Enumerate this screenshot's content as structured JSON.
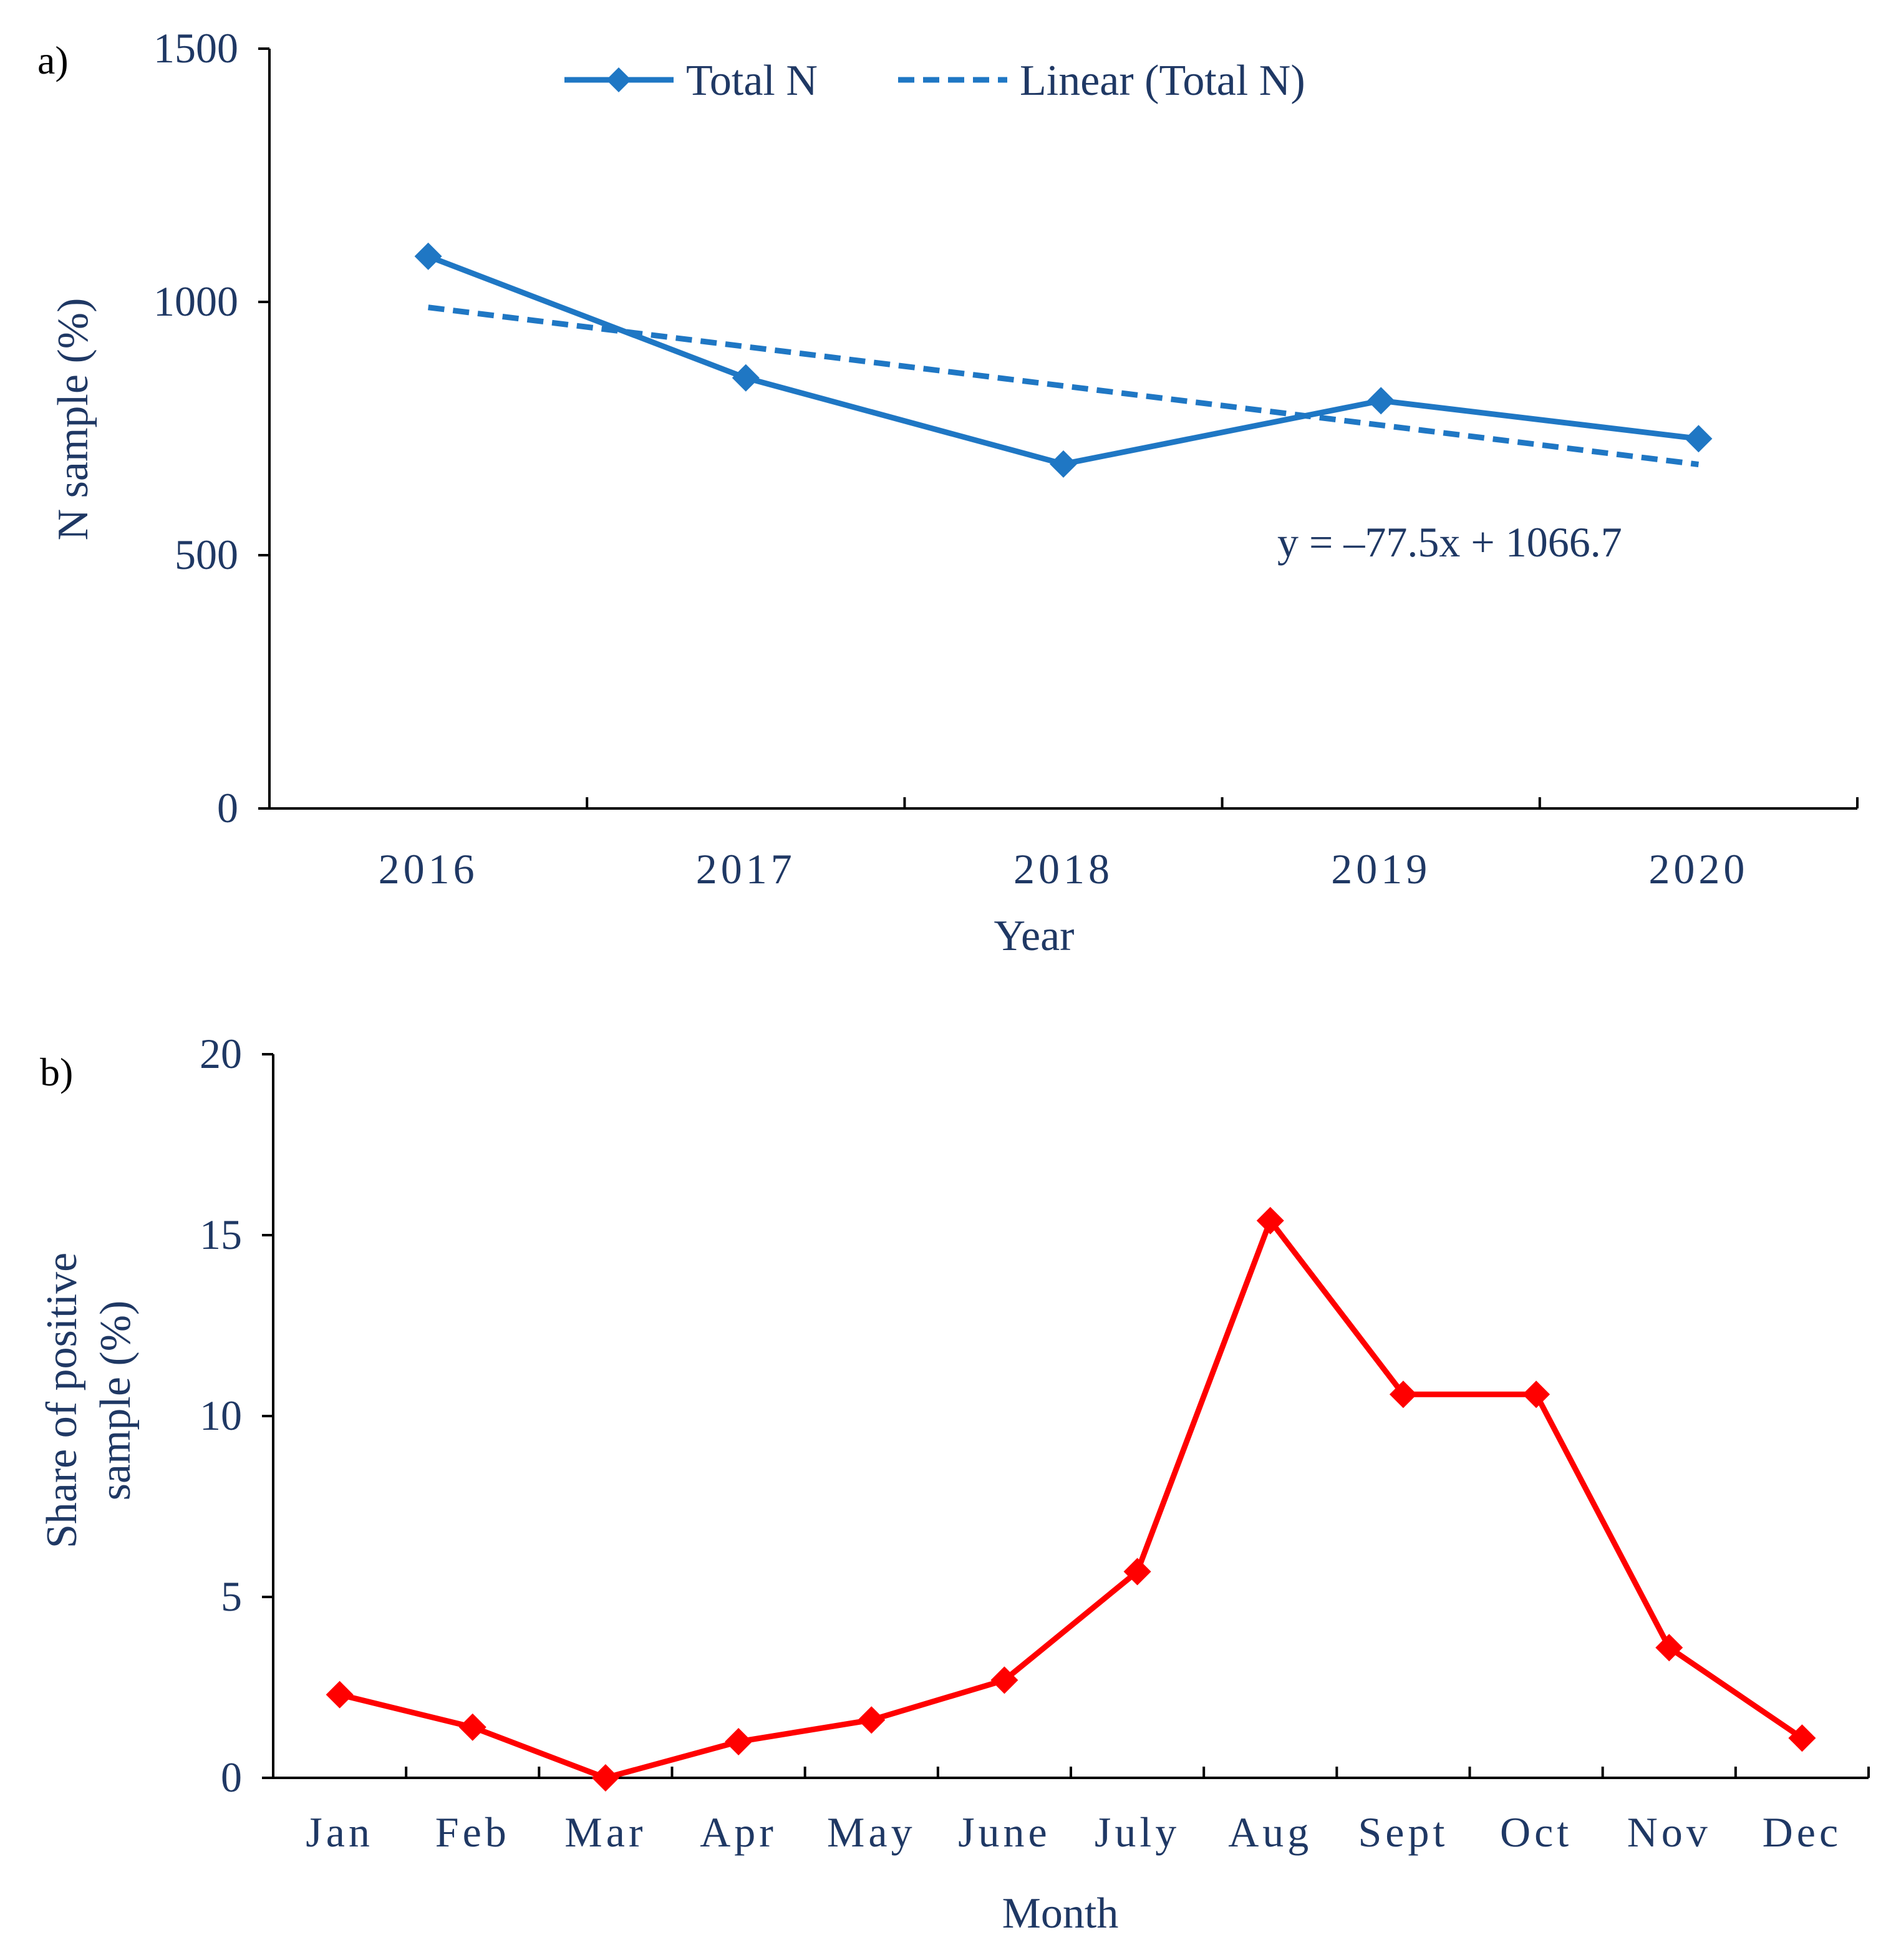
{
  "colors": {
    "total_n": "#1f77c4",
    "positive": "#ff0000",
    "axis": "#000000",
    "text": "#1f3864"
  },
  "chart_data": [
    {
      "panel_label": "a)",
      "type": "line",
      "title": "",
      "xlabel": "Year",
      "ylabel": "N sample (%)",
      "categories": [
        "2016",
        "2017",
        "2018",
        "2019",
        "2020"
      ],
      "ylim": [
        0,
        1500
      ],
      "yticks": [
        "0",
        "500",
        "1000",
        "1500"
      ],
      "legend_position": "top",
      "series": [
        {
          "name": "Total N",
          "style": "solid-diamond",
          "values": [
            1090,
            850,
            680,
            805,
            730
          ]
        },
        {
          "name": "Linear (Total N)",
          "style": "dashed",
          "values": [
            989.2,
            911.7,
            834.2,
            756.7,
            679.2
          ]
        }
      ],
      "annotation": "y = –77.5x + 1066.7"
    },
    {
      "panel_label": "b)",
      "type": "line",
      "title": "",
      "xlabel": "Month",
      "ylabel_line1": "Share of positive",
      "ylabel_line2": "sample (%)",
      "categories": [
        "Jan",
        "Feb",
        "Mar",
        "Apr",
        "May",
        "June",
        "July",
        "Aug",
        "Sept",
        "Oct",
        "Nov",
        "Dec"
      ],
      "ylim": [
        0,
        20
      ],
      "yticks": [
        "0",
        "5",
        "10",
        "15",
        "20"
      ],
      "series": [
        {
          "name": "Share of positive sample",
          "style": "solid-diamond",
          "values": [
            2.3,
            1.4,
            0.0,
            1.0,
            1.6,
            2.7,
            5.7,
            15.4,
            10.6,
            10.6,
            3.6,
            1.1
          ]
        }
      ]
    }
  ]
}
